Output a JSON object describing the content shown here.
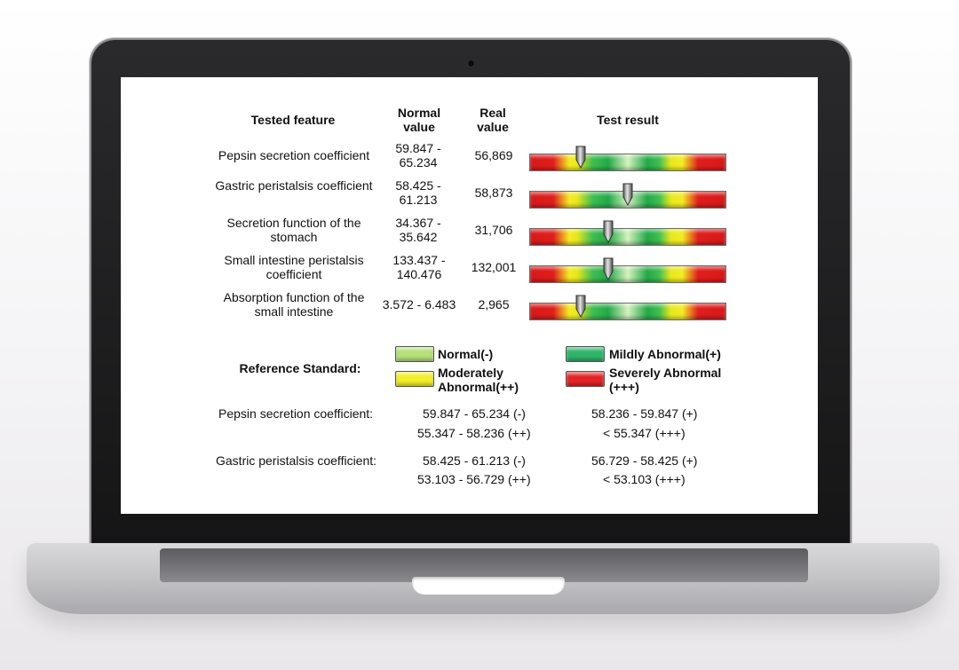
{
  "headers": {
    "feature": "Tested feature",
    "normal": "Normal value",
    "real": "Real value",
    "result": "Test result"
  },
  "rows": [
    {
      "feature": "Pepsin secretion coefficient",
      "normal": "59.847 - 65.234",
      "real": "56,869",
      "marker_position": 0.26
    },
    {
      "feature": "Gastric peristalsis coefficient",
      "normal": "58.425 - 61.213",
      "real": "58,873",
      "marker_position": 0.5
    },
    {
      "feature": "Secretion function of the stomach",
      "normal": "34.367 - 35.642",
      "real": "31,706",
      "marker_position": 0.4
    },
    {
      "feature": "Small intestine peristalsis coefficient",
      "normal": "133.437 - 140.476",
      "real": "132,001",
      "marker_position": 0.4
    },
    {
      "feature": "Absorption function of the small intestine",
      "normal": "3.572 - 6.483",
      "real": "2,965",
      "marker_position": 0.26
    }
  ],
  "reference": {
    "title": "Reference Standard:",
    "legend": [
      {
        "label": "Normal(-)",
        "color": "#b5e07a"
      },
      {
        "label": "Mildly Abnormal(+)",
        "color": "#2fb46a"
      },
      {
        "label": "Moderately Abnormal(++)",
        "color": "#f1ee2c"
      },
      {
        "label": "Severely Abnormal (+++)",
        "color": "#e32424"
      }
    ],
    "items": [
      {
        "name": "Pepsin secretion coefficient:",
        "values": [
          "59.847 - 65.234 (-)",
          "58.236 - 59.847 (+)",
          "55.347 - 58.236 (++)",
          "< 55.347 (+++)"
        ]
      },
      {
        "name": "Gastric peristalsis coefficient:",
        "values": [
          "58.425 - 61.213 (-)",
          "56.729 - 58.425 (+)",
          "53.103 - 56.729 (++)",
          "< 53.103 (+++)"
        ]
      }
    ]
  }
}
